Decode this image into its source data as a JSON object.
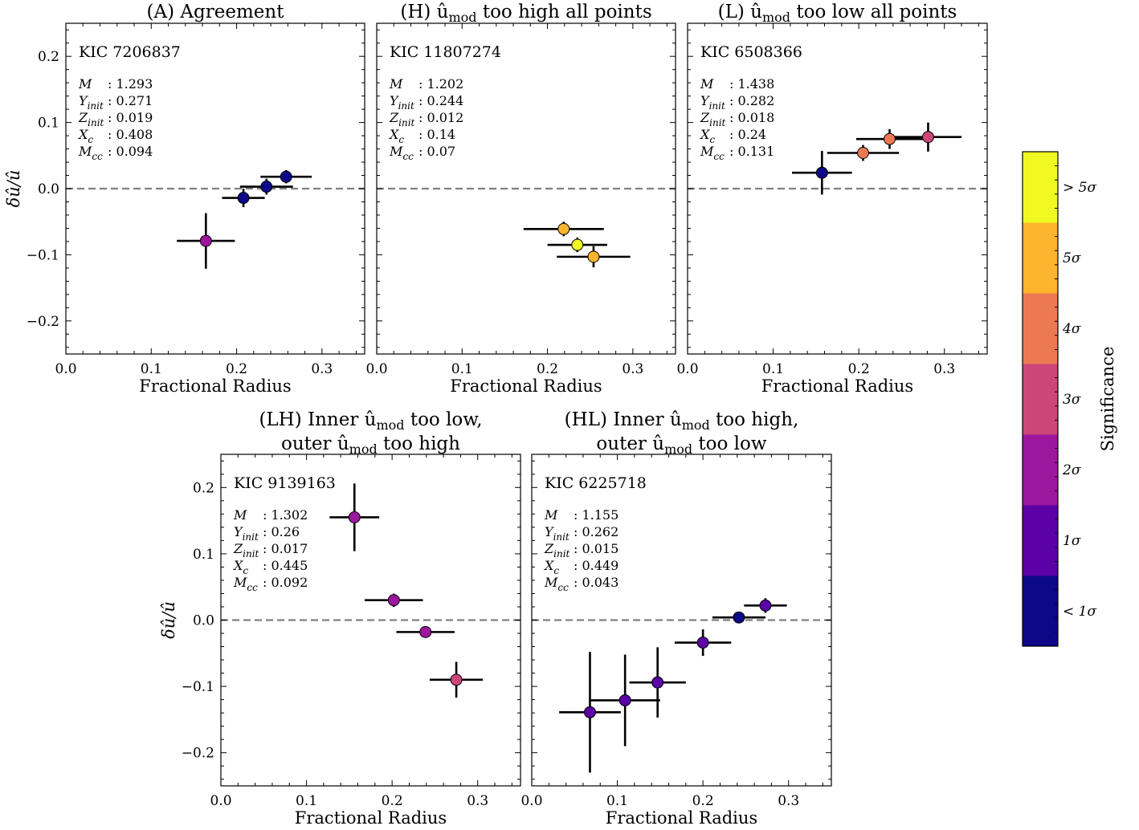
{
  "figure": {
    "xlabel": "Fractional Radius",
    "ylabel": "δû/û",
    "colorbar": {
      "label": "Significance",
      "colors": [
        "#0d0887",
        "#5c01a6",
        "#9c179e",
        "#cc4778",
        "#ed7953",
        "#fdb42f",
        "#f0f921"
      ],
      "tick_labels": [
        "< 1σ",
        "1σ",
        "2σ",
        "3σ",
        "4σ",
        "5σ",
        "> 5σ"
      ]
    }
  },
  "chart_data": [
    {
      "type": "scatter",
      "title": "(A) Agreement",
      "title_line2": "",
      "star": "KIC 7206837",
      "params": [
        {
          "name": "M",
          "value": ": 1.293"
        },
        {
          "name": "Y_init",
          "value": ": 0.271"
        },
        {
          "name": "Z_init",
          "value": ": 0.019"
        },
        {
          "name": "X_c",
          "value": ": 0.408"
        },
        {
          "name": "M_cc",
          "value": ": 0.094"
        }
      ],
      "xlabel": "Fractional Radius",
      "ylabel": "δû/û",
      "xlim": [
        0.0,
        0.35
      ],
      "ylim": [
        -0.25,
        0.25
      ],
      "xticks": [
        "0.0",
        "0.1",
        "0.2",
        "0.3"
      ],
      "yticks": [
        "−0.2",
        "−0.1",
        "0.0",
        "0.1",
        "0.2"
      ],
      "show_yticklabels": true,
      "points": [
        {
          "x": 0.164,
          "y": -0.079,
          "xerr": 0.034,
          "yerr": 0.042,
          "sigma_bin": 2
        },
        {
          "x": 0.208,
          "y": -0.014,
          "xerr": 0.025,
          "yerr": 0.014,
          "sigma_bin": 0
        },
        {
          "x": 0.235,
          "y": 0.003,
          "xerr": 0.031,
          "yerr": 0.012,
          "sigma_bin": 0
        },
        {
          "x": 0.258,
          "y": 0.018,
          "xerr": 0.03,
          "yerr": 0.01,
          "sigma_bin": 0
        }
      ]
    },
    {
      "type": "scatter",
      "title": "(H) û_mod too high all points",
      "title_line2": "",
      "star": "KIC 11807274",
      "params": [
        {
          "name": "M",
          "value": ": 1.202"
        },
        {
          "name": "Y_init",
          "value": ": 0.244"
        },
        {
          "name": "Z_init",
          "value": ": 0.012"
        },
        {
          "name": "X_c",
          "value": ": 0.14"
        },
        {
          "name": "M_cc",
          "value": ": 0.07"
        }
      ],
      "xlabel": "Fractional Radius",
      "ylabel": "",
      "xlim": [
        0.0,
        0.35
      ],
      "ylim": [
        -0.25,
        0.25
      ],
      "xticks": [
        "0.0",
        "0.1",
        "0.2",
        "0.3"
      ],
      "yticks": [
        "−0.2",
        "−0.1",
        "0.0",
        "0.1",
        "0.2"
      ],
      "show_yticklabels": false,
      "points": [
        {
          "x": 0.219,
          "y": -0.061,
          "xerr": 0.047,
          "yerr": 0.011,
          "sigma_bin": 5
        },
        {
          "x": 0.235,
          "y": -0.085,
          "xerr": 0.035,
          "yerr": 0.011,
          "sigma_bin": 6
        },
        {
          "x": 0.254,
          "y": -0.103,
          "xerr": 0.043,
          "yerr": 0.016,
          "sigma_bin": 5
        }
      ]
    },
    {
      "type": "scatter",
      "title": "(L) û_mod too low all points",
      "title_line2": "",
      "star": "KIC 6508366",
      "params": [
        {
          "name": "M",
          "value": ": 1.438"
        },
        {
          "name": "Y_init",
          "value": ": 0.282"
        },
        {
          "name": "Z_init",
          "value": ": 0.018"
        },
        {
          "name": "X_c",
          "value": ": 0.24"
        },
        {
          "name": "M_cc",
          "value": ": 0.131"
        }
      ],
      "xlabel": "Fractional Radius",
      "ylabel": "",
      "xlim": [
        0.0,
        0.35
      ],
      "ylim": [
        -0.25,
        0.25
      ],
      "xticks": [
        "0.0",
        "0.1",
        "0.2",
        "0.3"
      ],
      "yticks": [
        "−0.2",
        "−0.1",
        "0.0",
        "0.1",
        "0.2"
      ],
      "show_yticklabels": false,
      "points": [
        {
          "x": 0.157,
          "y": 0.024,
          "xerr": 0.035,
          "yerr": 0.033,
          "sigma_bin": 0
        },
        {
          "x": 0.205,
          "y": 0.054,
          "xerr": 0.042,
          "yerr": 0.012,
          "sigma_bin": 4
        },
        {
          "x": 0.236,
          "y": 0.075,
          "xerr": 0.039,
          "yerr": 0.015,
          "sigma_bin": 4
        },
        {
          "x": 0.281,
          "y": 0.078,
          "xerr": 0.039,
          "yerr": 0.022,
          "sigma_bin": 3
        }
      ]
    },
    {
      "type": "scatter",
      "title": "(LH) Inner û_mod too low,",
      "title_line2": "outer û_mod too high",
      "star": "KIC 9139163",
      "params": [
        {
          "name": "M",
          "value": ": 1.302"
        },
        {
          "name": "Y_init",
          "value": ": 0.26"
        },
        {
          "name": "Z_init",
          "value": ": 0.017"
        },
        {
          "name": "X_c",
          "value": ": 0.445"
        },
        {
          "name": "M_cc",
          "value": ": 0.092"
        }
      ],
      "xlabel": "Fractional Radius",
      "ylabel": "δû/û",
      "xlim": [
        0.0,
        0.35
      ],
      "ylim": [
        -0.25,
        0.25
      ],
      "xticks": [
        "0.0",
        "0.1",
        "0.2",
        "0.3"
      ],
      "yticks": [
        "−0.2",
        "−0.1",
        "0.0",
        "0.1",
        "0.2"
      ],
      "show_yticklabels": true,
      "points": [
        {
          "x": 0.156,
          "y": 0.155,
          "xerr": 0.029,
          "yerr": 0.051,
          "sigma_bin": 2
        },
        {
          "x": 0.202,
          "y": 0.03,
          "xerr": 0.034,
          "yerr": 0.01,
          "sigma_bin": 2
        },
        {
          "x": 0.239,
          "y": -0.018,
          "xerr": 0.034,
          "yerr": 0.006,
          "sigma_bin": 2
        },
        {
          "x": 0.275,
          "y": -0.09,
          "xerr": 0.031,
          "yerr": 0.027,
          "sigma_bin": 3
        }
      ]
    },
    {
      "type": "scatter",
      "title": "(HL) Inner û_mod too high,",
      "title_line2": "outer û_mod too low",
      "star": "KIC 6225718",
      "params": [
        {
          "name": "M",
          "value": ": 1.155"
        },
        {
          "name": "Y_init",
          "value": ": 0.262"
        },
        {
          "name": "Z_init",
          "value": ": 0.015"
        },
        {
          "name": "X_c",
          "value": ": 0.449"
        },
        {
          "name": "M_cc",
          "value": ": 0.043"
        }
      ],
      "xlabel": "Fractional Radius",
      "ylabel": "",
      "xlim": [
        0.0,
        0.35
      ],
      "ylim": [
        -0.25,
        0.25
      ],
      "xticks": [
        "0.0",
        "0.1",
        "0.2",
        "0.3"
      ],
      "yticks": [
        "−0.2",
        "−0.1",
        "0.0",
        "0.1",
        "0.2"
      ],
      "show_yticklabels": false,
      "points": [
        {
          "x": 0.068,
          "y": -0.139,
          "xerr": 0.036,
          "yerr": 0.091,
          "sigma_bin": 1
        },
        {
          "x": 0.109,
          "y": -0.121,
          "xerr": 0.041,
          "yerr": 0.069,
          "sigma_bin": 1
        },
        {
          "x": 0.147,
          "y": -0.094,
          "xerr": 0.033,
          "yerr": 0.053,
          "sigma_bin": 1
        },
        {
          "x": 0.2,
          "y": -0.034,
          "xerr": 0.033,
          "yerr": 0.02,
          "sigma_bin": 1
        },
        {
          "x": 0.242,
          "y": 0.004,
          "xerr": 0.031,
          "yerr": 0.005,
          "sigma_bin": 0
        },
        {
          "x": 0.273,
          "y": 0.022,
          "xerr": 0.025,
          "yerr": 0.011,
          "sigma_bin": 1
        }
      ]
    }
  ]
}
